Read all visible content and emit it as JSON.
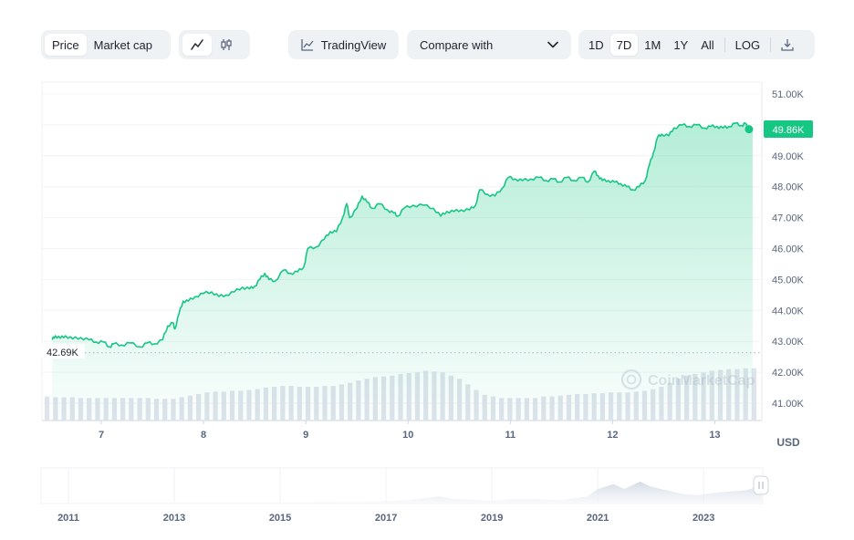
{
  "toolbar": {
    "type_tabs": [
      {
        "label": "Price",
        "active": true
      },
      {
        "label": "Market cap",
        "active": false
      }
    ],
    "style_icons": [
      {
        "icon": "line-chart-icon",
        "active": true
      },
      {
        "icon": "candlestick-icon",
        "active": false
      }
    ],
    "tradingview_label": "TradingView",
    "compare_label": "Compare with",
    "ranges": [
      "1D",
      "7D",
      "1M",
      "1Y",
      "All"
    ],
    "active_range": "7D",
    "log_label": "LOG",
    "download_icon": "download-icon"
  },
  "chart_data": {
    "type": "line",
    "y_ticks": [
      "51.00K",
      "50.00K",
      "49.00K",
      "48.00K",
      "47.00K",
      "46.00K",
      "45.00K",
      "44.00K",
      "43.00K",
      "42.00K",
      "41.00K"
    ],
    "ylim": [
      40600,
      51000
    ],
    "x_ticks": [
      "7",
      "8",
      "9",
      "10",
      "11",
      "12",
      "13"
    ],
    "xlim": [
      6.42,
      13.46
    ],
    "current_price_label": "49.86K",
    "current_price": 49860,
    "open_price_label": "42.69K",
    "open_price": 42690,
    "currency_label": "USD",
    "series_color": "#16c784",
    "price_points": [
      [
        6.52,
        43.05
      ],
      [
        6.55,
        43.18
      ],
      [
        6.6,
        43.1
      ],
      [
        6.65,
        43.18
      ],
      [
        6.72,
        43.08
      ],
      [
        6.8,
        43.12
      ],
      [
        6.88,
        43.05
      ],
      [
        6.95,
        42.98
      ],
      [
        7.02,
        42.98
      ],
      [
        7.08,
        42.82
      ],
      [
        7.12,
        42.92
      ],
      [
        7.2,
        42.88
      ],
      [
        7.28,
        42.95
      ],
      [
        7.38,
        42.82
      ],
      [
        7.45,
        42.95
      ],
      [
        7.52,
        42.92
      ],
      [
        7.6,
        43.05
      ],
      [
        7.65,
        43.5
      ],
      [
        7.7,
        43.6
      ],
      [
        7.72,
        43.4
      ],
      [
        7.76,
        43.9
      ],
      [
        7.8,
        44.3
      ],
      [
        7.85,
        44.3
      ],
      [
        7.92,
        44.45
      ],
      [
        8.0,
        44.55
      ],
      [
        8.08,
        44.6
      ],
      [
        8.15,
        44.45
      ],
      [
        8.22,
        44.5
      ],
      [
        8.3,
        44.6
      ],
      [
        8.38,
        44.75
      ],
      [
        8.45,
        44.7
      ],
      [
        8.5,
        44.78
      ],
      [
        8.55,
        45.0
      ],
      [
        8.6,
        45.2
      ],
      [
        8.64,
        45.0
      ],
      [
        8.7,
        44.95
      ],
      [
        8.78,
        45.3
      ],
      [
        8.85,
        45.2
      ],
      [
        8.92,
        45.25
      ],
      [
        8.98,
        45.4
      ],
      [
        9.02,
        46.0
      ],
      [
        9.1,
        46.05
      ],
      [
        9.18,
        46.3
      ],
      [
        9.24,
        46.55
      ],
      [
        9.3,
        46.55
      ],
      [
        9.36,
        47.0
      ],
      [
        9.4,
        47.45
      ],
      [
        9.43,
        47.0
      ],
      [
        9.5,
        47.3
      ],
      [
        9.55,
        47.7
      ],
      [
        9.6,
        47.5
      ],
      [
        9.65,
        47.3
      ],
      [
        9.72,
        47.45
      ],
      [
        9.8,
        47.25
      ],
      [
        9.86,
        47.15
      ],
      [
        9.9,
        47.05
      ],
      [
        9.96,
        47.3
      ],
      [
        10.05,
        47.4
      ],
      [
        10.15,
        47.4
      ],
      [
        10.25,
        47.3
      ],
      [
        10.32,
        47.05
      ],
      [
        10.38,
        47.2
      ],
      [
        10.45,
        47.2
      ],
      [
        10.52,
        47.25
      ],
      [
        10.6,
        47.25
      ],
      [
        10.66,
        47.4
      ],
      [
        10.7,
        47.9
      ],
      [
        10.78,
        47.75
      ],
      [
        10.85,
        47.7
      ],
      [
        10.92,
        47.95
      ],
      [
        10.98,
        48.3
      ],
      [
        11.05,
        48.25
      ],
      [
        11.12,
        48.2
      ],
      [
        11.2,
        48.25
      ],
      [
        11.28,
        48.3
      ],
      [
        11.35,
        48.2
      ],
      [
        11.42,
        48.25
      ],
      [
        11.48,
        48.15
      ],
      [
        11.55,
        48.3
      ],
      [
        11.62,
        48.2
      ],
      [
        11.7,
        48.3
      ],
      [
        11.76,
        48.15
      ],
      [
        11.82,
        48.5
      ],
      [
        11.86,
        48.35
      ],
      [
        11.9,
        48.2
      ],
      [
        11.96,
        48.2
      ],
      [
        12.02,
        48.15
      ],
      [
        12.08,
        48.1
      ],
      [
        12.14,
        48.0
      ],
      [
        12.2,
        47.9
      ],
      [
        12.26,
        48.0
      ],
      [
        12.32,
        48.2
      ],
      [
        12.36,
        48.7
      ],
      [
        12.4,
        49.1
      ],
      [
        12.44,
        49.6
      ],
      [
        12.48,
        49.7
      ],
      [
        12.55,
        49.65
      ],
      [
        12.6,
        49.9
      ],
      [
        12.68,
        50.0
      ],
      [
        12.75,
        49.95
      ],
      [
        12.82,
        50.0
      ],
      [
        12.9,
        49.9
      ],
      [
        12.96,
        49.95
      ],
      [
        13.02,
        49.95
      ],
      [
        13.08,
        49.9
      ],
      [
        13.14,
        49.95
      ],
      [
        13.2,
        50.05
      ],
      [
        13.26,
        49.98
      ],
      [
        13.3,
        50.05
      ],
      [
        13.33,
        49.8
      ],
      [
        13.37,
        49.86
      ]
    ],
    "volume_rel": [
      0.3,
      0.29,
      0.29,
      0.29,
      0.28,
      0.28,
      0.28,
      0.28,
      0.28,
      0.28,
      0.28,
      0.28,
      0.28,
      0.27,
      0.27,
      0.27,
      0.29,
      0.31,
      0.33,
      0.35,
      0.36,
      0.36,
      0.37,
      0.37,
      0.38,
      0.39,
      0.41,
      0.42,
      0.43,
      0.43,
      0.42,
      0.42,
      0.42,
      0.43,
      0.43,
      0.45,
      0.47,
      0.5,
      0.52,
      0.54,
      0.55,
      0.56,
      0.58,
      0.59,
      0.6,
      0.62,
      0.61,
      0.6,
      0.56,
      0.52,
      0.45,
      0.38,
      0.32,
      0.3,
      0.28,
      0.28,
      0.28,
      0.28,
      0.28,
      0.3,
      0.3,
      0.31,
      0.32,
      0.33,
      0.33,
      0.34,
      0.34,
      0.35,
      0.35,
      0.35,
      0.36,
      0.37,
      0.39,
      0.42,
      0.47,
      0.52,
      0.56,
      0.58,
      0.6,
      0.62,
      0.63,
      0.64,
      0.64,
      0.65,
      0.65
    ],
    "overview_x_ticks": [
      "2011",
      "2013",
      "2015",
      "2017",
      "2019",
      "2021",
      "2023"
    ],
    "overview_xlim": [
      2010.5,
      2024.1
    ],
    "overview_series": [
      [
        2010.5,
        0.0
      ],
      [
        2013.0,
        0.01
      ],
      [
        2014.0,
        0.02
      ],
      [
        2015.0,
        0.01
      ],
      [
        2016.5,
        0.03
      ],
      [
        2017.2,
        0.07
      ],
      [
        2017.6,
        0.15
      ],
      [
        2018.0,
        0.25
      ],
      [
        2018.3,
        0.15
      ],
      [
        2018.8,
        0.1
      ],
      [
        2019.0,
        0.07
      ],
      [
        2019.4,
        0.15
      ],
      [
        2019.8,
        0.15
      ],
      [
        2020.3,
        0.1
      ],
      [
        2020.8,
        0.25
      ],
      [
        2021.0,
        0.55
      ],
      [
        2021.3,
        0.75
      ],
      [
        2021.5,
        0.55
      ],
      [
        2021.8,
        0.85
      ],
      [
        2022.0,
        0.65
      ],
      [
        2022.3,
        0.5
      ],
      [
        2022.6,
        0.35
      ],
      [
        2022.9,
        0.3
      ],
      [
        2023.2,
        0.4
      ],
      [
        2023.5,
        0.45
      ],
      [
        2023.8,
        0.5
      ],
      [
        2024.1,
        0.7
      ]
    ]
  },
  "watermark": "CoinMarketCap"
}
